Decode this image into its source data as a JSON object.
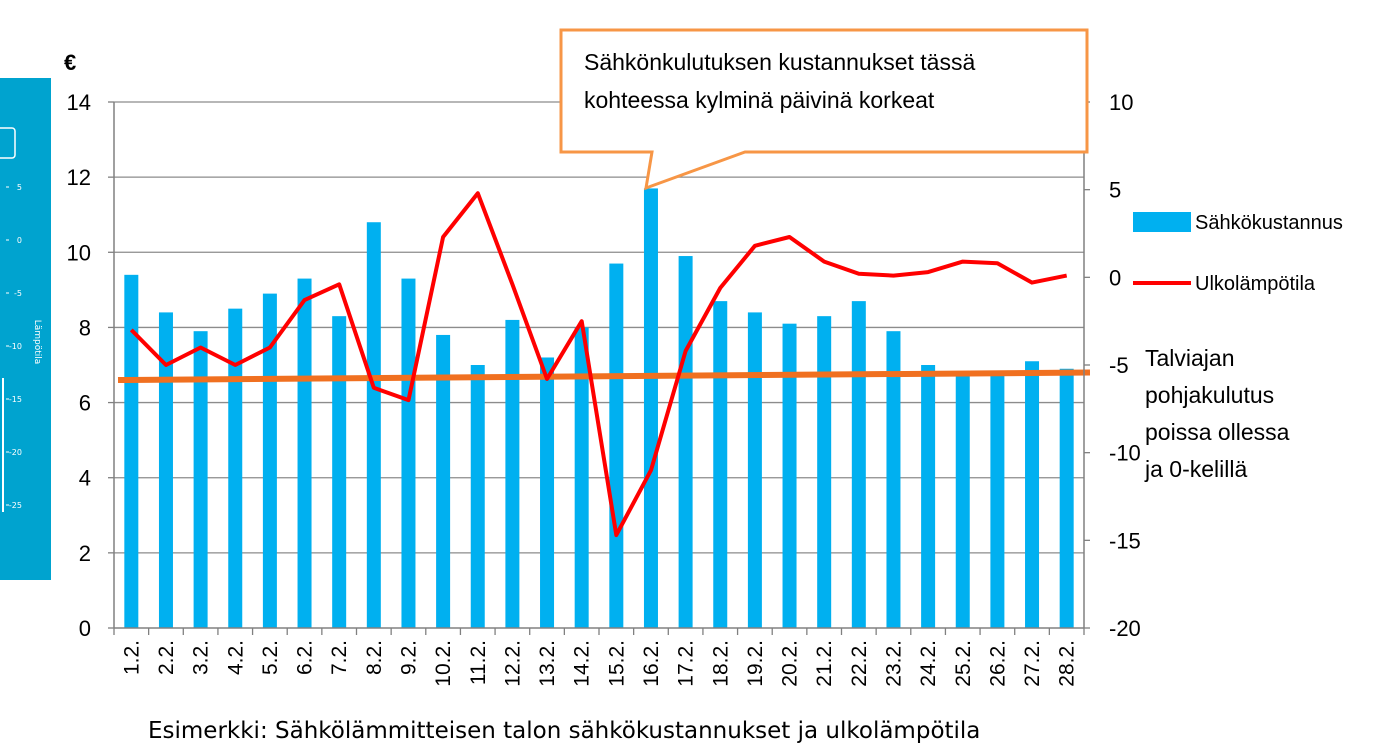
{
  "chart_data": {
    "type": "bar",
    "title": "",
    "caption": "Esimerkki: Sähkölämmitteisen talon sähkökustannukset ja ulkolämpötila",
    "y_unit": "€",
    "categories": [
      "1.2.",
      "2.2.",
      "3.2.",
      "4.2.",
      "5.2.",
      "6.2.",
      "7.2.",
      "8.2.",
      "9.2.",
      "10.2.",
      "11.2.",
      "12.2.",
      "13.2.",
      "14.2.",
      "15.2.",
      "16.2.",
      "17.2.",
      "18.2.",
      "19.2.",
      "20.2.",
      "21.2.",
      "22.2.",
      "23.2.",
      "24.2.",
      "25.2.",
      "26.2.",
      "27.2.",
      "28.2."
    ],
    "ylim": [
      0,
      14
    ],
    "yticks": [
      "0",
      "2",
      "4",
      "6",
      "8",
      "10",
      "12",
      "14"
    ],
    "y2lim": [
      -20,
      10
    ],
    "y2ticks": [
      "-20",
      "-15",
      "-10",
      "-5",
      "0",
      "5",
      "10"
    ],
    "series": [
      {
        "name": "Sähkökustannus",
        "type": "bar",
        "axis": "left",
        "color": "#00b0f0",
        "values": [
          9.4,
          8.4,
          7.9,
          8.5,
          8.9,
          9.3,
          8.3,
          10.8,
          9.3,
          7.8,
          7.0,
          8.2,
          7.2,
          8.0,
          9.7,
          11.7,
          9.9,
          8.7,
          8.4,
          8.1,
          8.3,
          8.7,
          7.9,
          7.0,
          6.8,
          6.8,
          7.1,
          6.9
        ]
      },
      {
        "name": "Ulkolämpötila",
        "type": "line",
        "axis": "right",
        "color": "#ff0000",
        "values": [
          -3.0,
          -5.0,
          -4.0,
          -5.0,
          -4.0,
          -1.3,
          -0.4,
          -6.3,
          -7.0,
          2.3,
          4.8,
          -0.4,
          -5.8,
          -2.5,
          -14.7,
          -11.0,
          -4.2,
          -0.6,
          1.8,
          2.3,
          0.9,
          0.2,
          0.1,
          0.3,
          0.9,
          0.8,
          -0.3,
          0.1
        ]
      }
    ],
    "baseline": {
      "label": [
        "Talviajan",
        "pohjakulutus",
        "poissa ollessa",
        "ja 0-kelillä"
      ],
      "color": "#f07020",
      "start": 6.6,
      "end": 6.8
    },
    "callout": {
      "lines": [
        "Sähkönkulutuksen kustannukset tässä",
        "kohteessa kylminä päivinä korkeat"
      ],
      "border_color": "#f79646",
      "category": "16.2."
    },
    "legend_placement": "right",
    "grid": true
  },
  "side_panel": {
    "color": "#00a3cf",
    "axis_title": "Lämpötila",
    "ticks": [
      "5",
      "0",
      "-5",
      "-10",
      "-15",
      "-20",
      "-25"
    ]
  }
}
